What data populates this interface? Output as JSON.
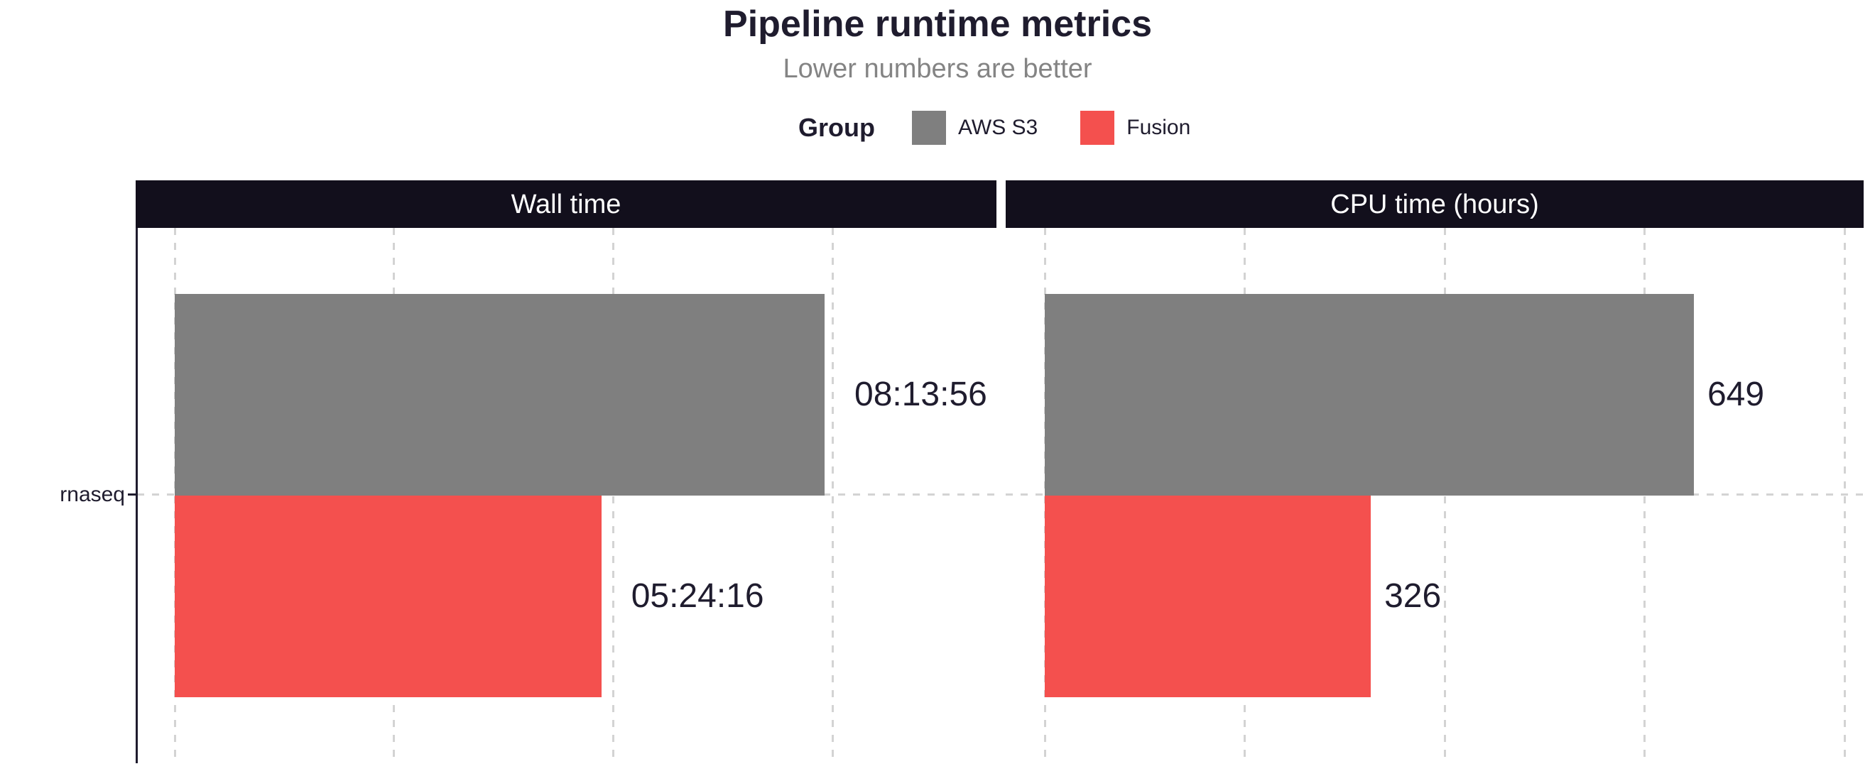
{
  "title": "Pipeline runtime metrics",
  "subtitle": "Lower numbers are better",
  "legend": {
    "title": "Group",
    "items": [
      {
        "label": "AWS S3",
        "color": "#7F7F7F"
      },
      {
        "label": "Fusion",
        "color": "#F4504E"
      }
    ]
  },
  "y_axis": {
    "category": "rnaseq"
  },
  "colors": {
    "text_dark": "#1F1C2E",
    "subtitle_text": "#848484",
    "strip_bg": "#120F1C",
    "strip_text": "#FFFFFF",
    "gridline": "#D3D3D3",
    "bar_gray": "#7F7F7F",
    "bar_red": "#F4504E"
  },
  "chart_data": {
    "type": "bar",
    "orientation": "horizontal",
    "categories": [
      "rnaseq"
    ],
    "legend_title": "Group",
    "legend_position": "top",
    "grid": "dashed, x gridlines only plus one y gridline at category center, no x tick labels",
    "panels": [
      {
        "title": "Wall time",
        "unit": "seconds",
        "x_axis": {
          "min": 0,
          "gridline_step": 10000,
          "gridline_max": 30000,
          "tick_labels_visible": false
        },
        "series": [
          {
            "group": "AWS S3",
            "category": "rnaseq",
            "value": 29636,
            "label": "08:13:56"
          },
          {
            "group": "Fusion",
            "category": "rnaseq",
            "value": 19456,
            "label": "05:24:16"
          }
        ]
      },
      {
        "title": "CPU time (hours)",
        "unit": "hours",
        "x_axis": {
          "min": 0,
          "gridline_step": 200,
          "gridline_max": 800,
          "tick_labels_visible": false
        },
        "series": [
          {
            "group": "AWS S3",
            "category": "rnaseq",
            "value": 649,
            "label": "649"
          },
          {
            "group": "Fusion",
            "category": "rnaseq",
            "value": 326,
            "label": "326"
          }
        ]
      }
    ]
  }
}
